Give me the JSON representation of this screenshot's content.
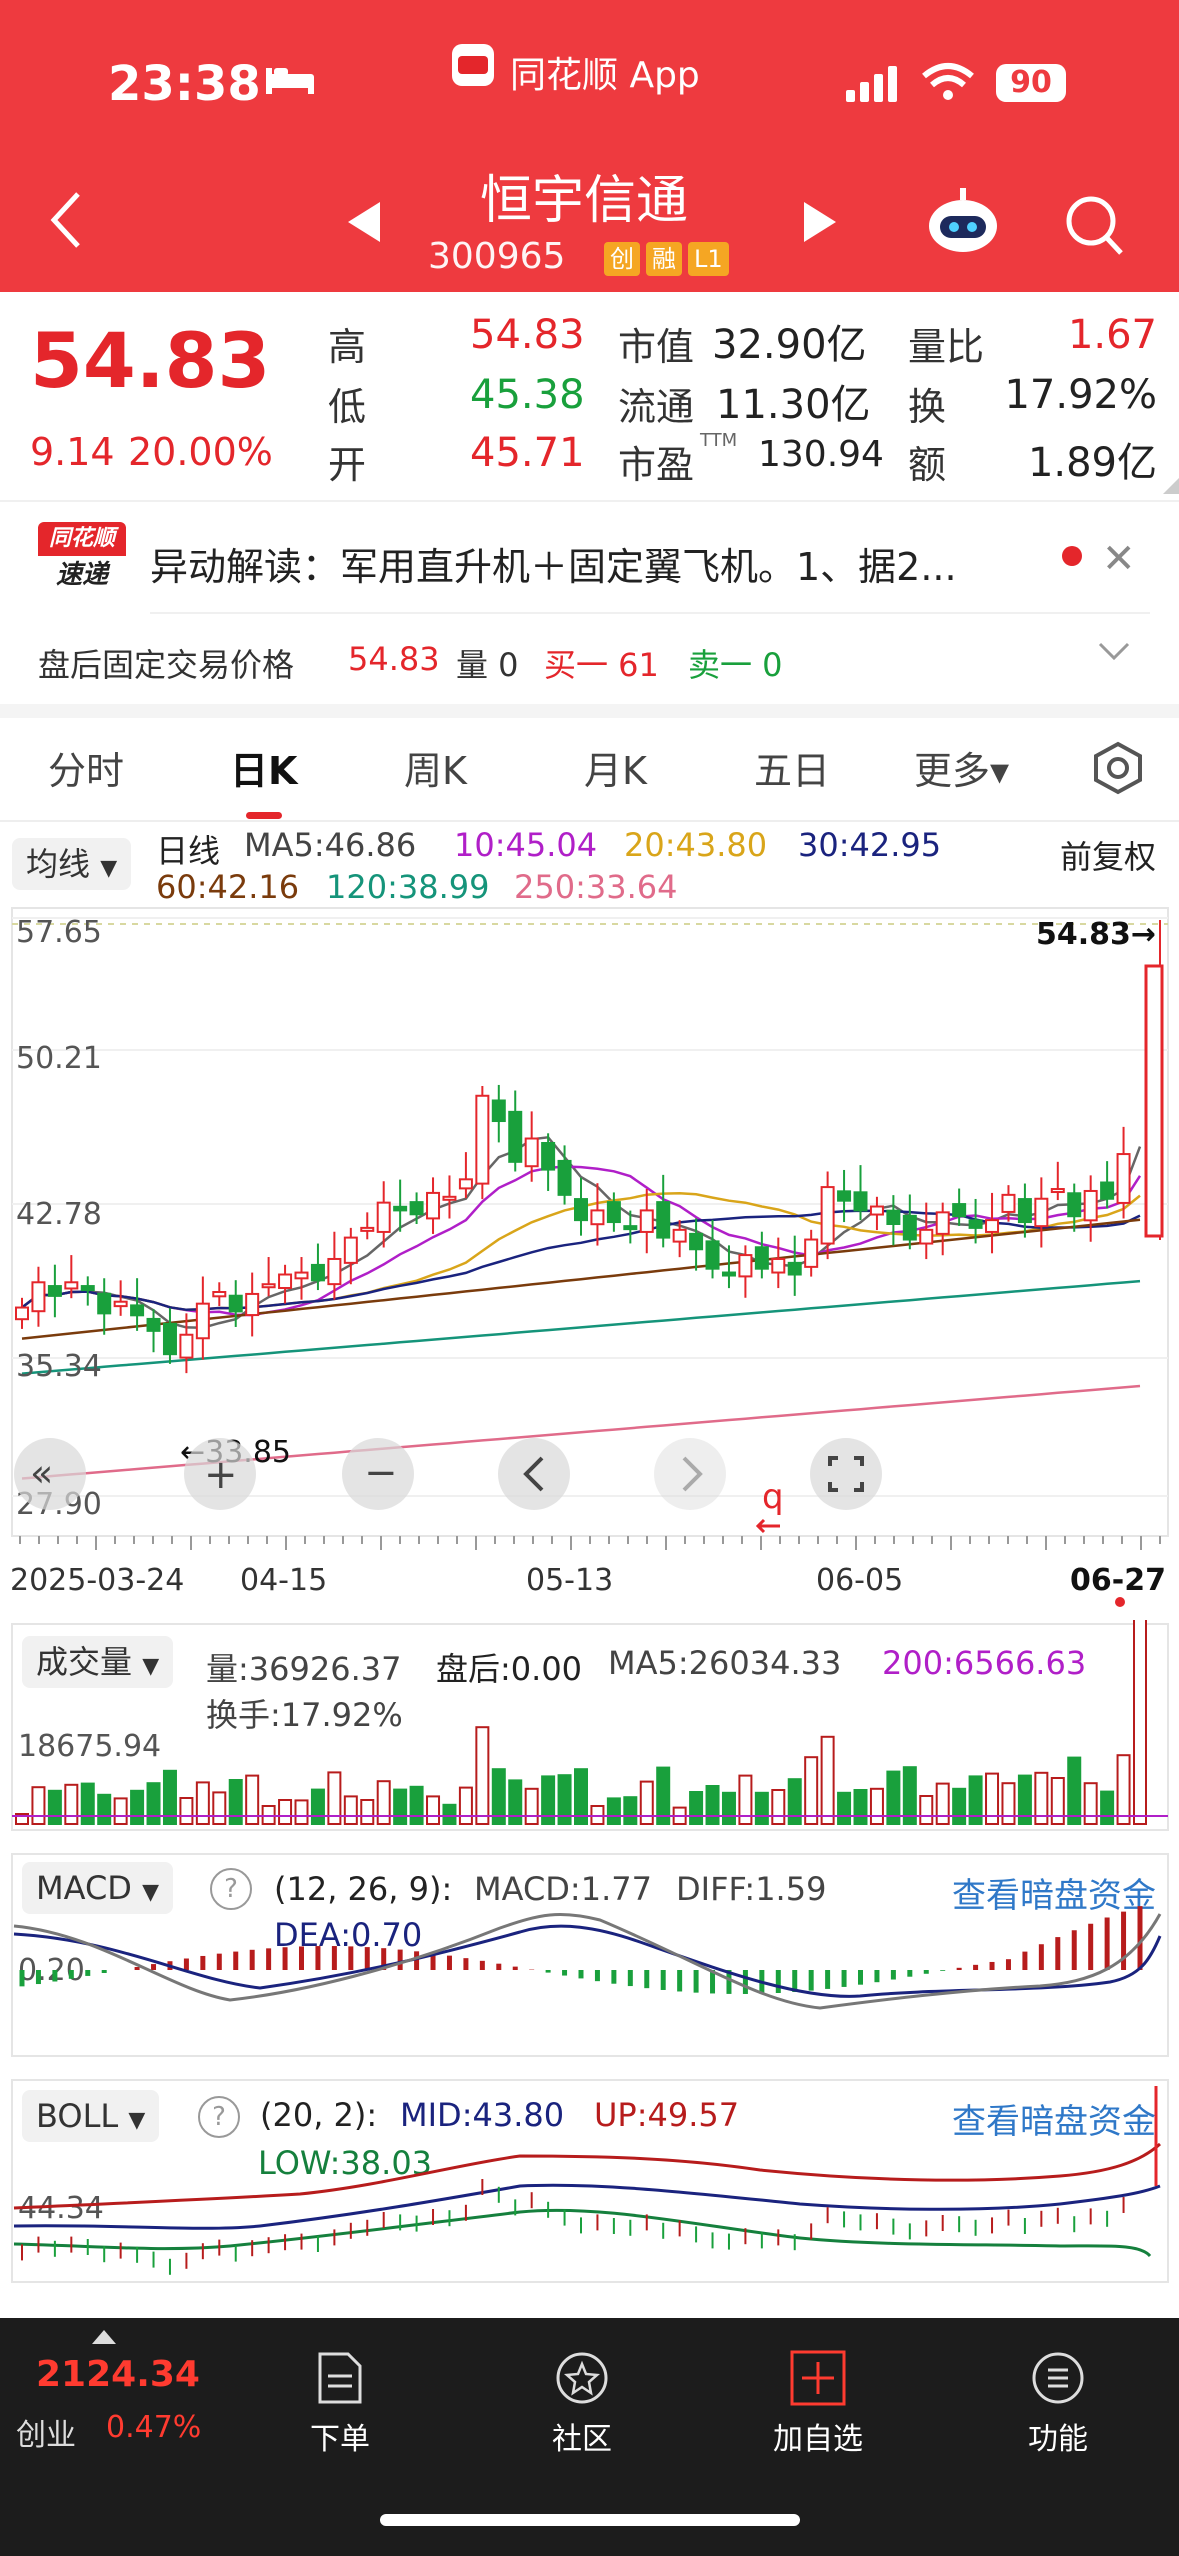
{
  "status": {
    "time": "23:38",
    "app": "同花顺 App",
    "battery": "90"
  },
  "header": {
    "name": "恒宇信通",
    "code": "300965",
    "badges": [
      "创",
      "融",
      "L1"
    ]
  },
  "quote": {
    "price": "54.83",
    "change": "9.14",
    "change_pct": "20.00%",
    "high_label": "高",
    "high": "54.83",
    "low_label": "低",
    "low": "45.38",
    "open_label": "开",
    "open": "45.71",
    "mcap_label": "市值",
    "mcap": "32.90亿",
    "float_label": "流通",
    "float": "11.30亿",
    "pe_label": "市盈",
    "pe_sup": "TTM",
    "pe": "130.94",
    "vr_label": "量比",
    "vr": "1.67",
    "turn_label": "换",
    "turn": "17.92%",
    "amt_label": "额",
    "amt": "1.89亿"
  },
  "news": {
    "logo_top": "同花顺",
    "logo_bottom": "速递",
    "text": "异动解读：军用直升机＋固定翼飞机。1、据2..."
  },
  "afterhours": {
    "label": "盘后固定交易价格",
    "price": "54.83",
    "vol": "量 0",
    "buy": "买一 61",
    "sell": "卖一 0"
  },
  "tabs": [
    "分时",
    "日K",
    "周K",
    "月K",
    "五日",
    "更多▾"
  ],
  "ma": {
    "dropdown": "均线",
    "period": "日线",
    "ma5": "MA5:46.86",
    "ma10": "10:45.04",
    "ma20": "20:43.80",
    "ma30": "30:42.95",
    "ma60": "60:42.16",
    "ma120": "120:38.99",
    "ma250": "250:33.64",
    "adjust": "前复权"
  },
  "kchart": {
    "yticks": [
      "57.65",
      "50.21",
      "42.78",
      "35.34",
      "27.90"
    ],
    "high_label": "54.83→",
    "low_label": "←33.85",
    "dates": [
      "2025-03-24",
      "04-15",
      "05-13",
      "06-05",
      "06-27"
    ]
  },
  "volume": {
    "dropdown": "成交量",
    "vol": "量:36926.37",
    "after": "盘后:0.00",
    "ma5": "MA5:26034.33",
    "ma200": "200:6566.63",
    "turnover": "换手:17.92%",
    "ytick": "18675.94"
  },
  "macd": {
    "dropdown": "MACD",
    "params": "(12, 26, 9):",
    "macd": "MACD:1.77",
    "diff": "DIFF:1.59",
    "dea": "DEA:0.70",
    "ytick": "0.20",
    "link": "查看暗盘资金"
  },
  "boll": {
    "dropdown": "BOLL",
    "params": "(20, 2):",
    "mid": "MID:43.80",
    "up": "UP:49.57",
    "low": "LOW:38.03",
    "ytick": "44.34",
    "link": "查看暗盘资金"
  },
  "bottom": {
    "index_value": "2124.34",
    "index_name": "创业",
    "index_pct": "0.47%",
    "items": [
      "下单",
      "社区",
      "加自选",
      "功能"
    ]
  },
  "colors": {
    "up": "#e4262b",
    "down": "#19a03c",
    "header": "#ee3a3f",
    "nav": "#1c1c1c"
  },
  "chart_data": {
    "type": "candlestick",
    "y_range": [
      27.9,
      57.65
    ],
    "x_labels": [
      "2025-03-24",
      "04-15",
      "05-13",
      "06-05",
      "06-27"
    ],
    "last_close": 54.83,
    "period_low": 33.85
  }
}
